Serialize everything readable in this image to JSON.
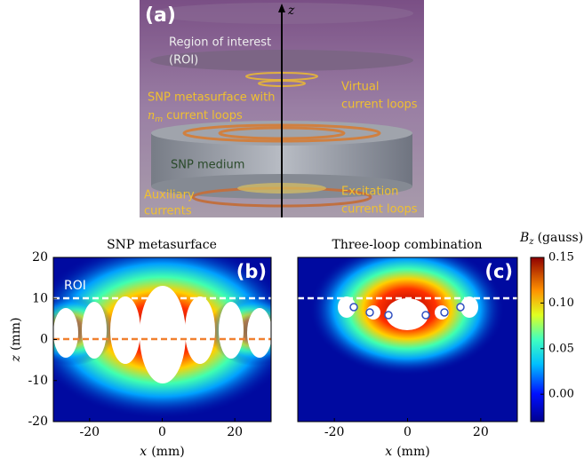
{
  "panel_a": {
    "label": "(a)",
    "axis_label": "z",
    "roi": [
      "Region of interest",
      "(ROI)"
    ],
    "virtual": [
      "Virtual",
      "current loops"
    ],
    "metasurface": {
      "line1": "SNP metasurface with",
      "var": "n",
      "sub": "m",
      "rest": "current loops"
    },
    "medium": "SNP medium",
    "auxiliary": [
      "Auxiliary",
      "currents"
    ],
    "excitation": [
      "Excitation",
      "current loops"
    ]
  },
  "panel_b": {
    "title": "SNP metasurface",
    "label": "(b)",
    "roi": "ROI",
    "xlim": [
      -30,
      30
    ],
    "ylim": [
      -20,
      20
    ],
    "xticks": [
      -20,
      0,
      20
    ],
    "yticks": [
      -20,
      -10,
      0,
      10,
      20
    ],
    "xlabel_var": "x",
    "xlabel_unit": "(mm)",
    "ylabel_var": "z",
    "ylabel_unit": "(mm)"
  },
  "panel_c": {
    "title": "Three-loop combination",
    "label": "(c)",
    "xlim": [
      -30,
      30
    ],
    "ylim": [
      -20,
      20
    ],
    "xticks": [
      -20,
      0,
      20
    ],
    "xlabel_var": "x",
    "xlabel_unit": "(mm)"
  },
  "colorbar": {
    "label_var": "B",
    "label_sub": "z",
    "label_unit": "(gauss)",
    "lim": [
      -0.03,
      0.15
    ],
    "ticks": [
      {
        "value": 0,
        "label": "0.00"
      },
      0.05,
      {
        "value": 0.1,
        "label": "0.10"
      },
      0.15
    ]
  }
}
